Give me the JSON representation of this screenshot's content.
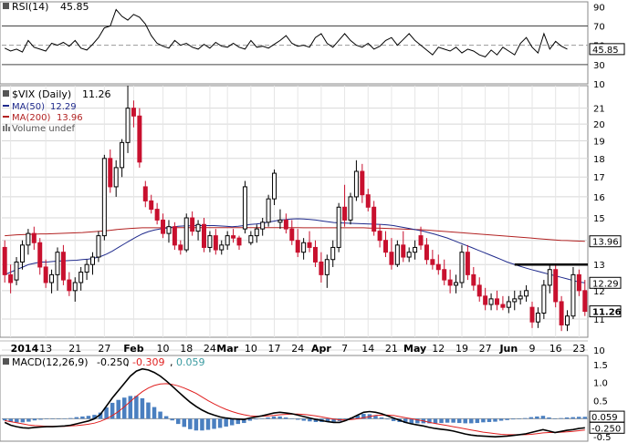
{
  "colors": {
    "up": "#000000",
    "down": "#c8102e",
    "ma50": "#1f2a8c",
    "ma200": "#b22222",
    "macd_line": "#000000",
    "signal_line": "#e02020",
    "hist": "#4a7fc0",
    "macd_hist_label": "#3a9aa0",
    "rsi_line": "#000000",
    "grid": "#d8d8d8",
    "trendline": "#000000"
  },
  "chart_data": [
    {
      "type": "line",
      "panel": "rsi",
      "legend": {
        "label": "RSI(14)",
        "value": "45.85"
      },
      "y_ticks": [
        "90",
        "70",
        "50",
        "30",
        "10"
      ],
      "ylim": [
        10,
        95
      ],
      "reference_lines": [
        70,
        50,
        30
      ],
      "last_value_tag": "45.85",
      "values": [
        47,
        44,
        46,
        43,
        55,
        48,
        46,
        44,
        52,
        50,
        53,
        49,
        55,
        47,
        45,
        51,
        58,
        68,
        70,
        87,
        80,
        76,
        82,
        79,
        72,
        60,
        52,
        49,
        47,
        55,
        50,
        52,
        48,
        46,
        51,
        47,
        53,
        49,
        48,
        52,
        48,
        46,
        55,
        48,
        49,
        47,
        51,
        55,
        60,
        52,
        49,
        50,
        48,
        58,
        62,
        52,
        48,
        55,
        62,
        55,
        50,
        48,
        52,
        46,
        49,
        55,
        58,
        50,
        56,
        62,
        55,
        50,
        45,
        40,
        48,
        46,
        44,
        48,
        42,
        46,
        44,
        40,
        38,
        45,
        40,
        48,
        44,
        40,
        52,
        58,
        48,
        42,
        62,
        46,
        54,
        49,
        46
      ]
    },
    {
      "type": "candlestick",
      "panel": "price",
      "legend": {
        "symbol": "$VIX (Daily)",
        "last": "11.26",
        "ma50_label": "MA(50)",
        "ma50_value": "12.29",
        "ma200_label": "MA(200)",
        "ma200_value": "13.96",
        "volume_label": "Volume undef"
      },
      "y_scale": "log",
      "ylim": [
        10.4,
        22.5
      ],
      "y_ticks": [
        "21",
        "20",
        "19",
        "18",
        "17",
        "16",
        "15",
        "14",
        "13",
        "12",
        "11",
        "10"
      ],
      "x_labels": [
        "2014",
        "13",
        "21",
        "27",
        "Feb",
        "10",
        "18",
        "24",
        "Mar",
        "10",
        "17",
        "24",
        "Apr",
        "7",
        "14",
        "21",
        "May",
        "12",
        "19",
        "27",
        "Jun",
        "9",
        "16",
        "23"
      ],
      "right_tags": [
        {
          "label": "13.96",
          "value": 13.96
        },
        {
          "label": "12.29",
          "value": 12.29
        },
        {
          "label": "11.26",
          "value": 11.26
        }
      ],
      "resistance_line": {
        "value": 13.0,
        "from_date": "Jun 9",
        "to_date": "Jun 26"
      },
      "ohlc": [
        [
          13.7,
          14.0,
          12.3,
          12.6
        ],
        [
          12.6,
          13.0,
          11.9,
          12.3
        ],
        [
          12.4,
          13.3,
          12.2,
          13.1
        ],
        [
          13.1,
          14.0,
          12.8,
          13.8
        ],
        [
          13.8,
          14.5,
          13.4,
          14.3
        ],
        [
          14.3,
          14.6,
          13.6,
          13.9
        ],
        [
          13.9,
          14.1,
          12.6,
          12.9
        ],
        [
          12.9,
          13.2,
          12.1,
          12.3
        ],
        [
          12.3,
          12.8,
          11.9,
          12.6
        ],
        [
          12.6,
          13.7,
          12.0,
          13.5
        ],
        [
          13.5,
          13.8,
          12.2,
          12.4
        ],
        [
          12.4,
          12.7,
          11.8,
          12.0
        ],
        [
          12.0,
          12.5,
          11.6,
          12.3
        ],
        [
          12.3,
          12.9,
          12.0,
          12.7
        ],
        [
          12.7,
          13.2,
          12.4,
          13.0
        ],
        [
          13.0,
          13.5,
          12.6,
          13.3
        ],
        [
          13.3,
          14.4,
          13.1,
          14.2
        ],
        [
          14.2,
          18.2,
          14.0,
          18.0
        ],
        [
          18.0,
          18.5,
          16.2,
          16.5
        ],
        [
          16.5,
          17.9,
          16.0,
          17.5
        ],
        [
          17.5,
          19.1,
          17.0,
          18.9
        ],
        [
          18.9,
          22.5,
          18.3,
          21.0
        ],
        [
          21.0,
          21.5,
          19.8,
          20.5
        ],
        [
          20.5,
          21.0,
          17.5,
          17.8
        ],
        [
          16.5,
          16.8,
          15.5,
          15.8
        ],
        [
          15.8,
          16.1,
          15.2,
          15.4
        ],
        [
          15.4,
          15.7,
          14.7,
          14.9
        ],
        [
          14.9,
          15.2,
          14.1,
          14.3
        ],
        [
          14.3,
          14.9,
          13.9,
          14.6
        ],
        [
          14.6,
          14.8,
          13.6,
          13.8
        ],
        [
          13.8,
          14.0,
          13.4,
          13.6
        ],
        [
          13.6,
          15.2,
          13.5,
          15.0
        ],
        [
          15.0,
          15.3,
          14.2,
          14.4
        ],
        [
          14.4,
          14.9,
          14.0,
          14.7
        ],
        [
          14.7,
          15.0,
          13.5,
          13.7
        ],
        [
          13.7,
          14.4,
          13.5,
          14.2
        ],
        [
          14.2,
          14.5,
          13.4,
          13.6
        ],
        [
          13.6,
          14.0,
          13.4,
          13.8
        ],
        [
          13.8,
          14.4,
          13.6,
          14.2
        ],
        [
          14.2,
          14.5,
          13.9,
          14.1
        ],
        [
          14.1,
          14.2,
          13.6,
          13.8
        ],
        [
          14.5,
          16.8,
          14.3,
          16.5
        ],
        [
          13.9,
          14.4,
          13.8,
          14.2
        ],
        [
          14.2,
          14.7,
          13.9,
          14.5
        ],
        [
          14.5,
          15.0,
          14.2,
          14.8
        ],
        [
          14.8,
          16.1,
          14.6,
          15.9
        ],
        [
          15.9,
          17.4,
          15.6,
          17.2
        ],
        [
          14.8,
          15.4,
          14.5,
          14.9
        ],
        [
          14.9,
          15.2,
          14.3,
          14.5
        ],
        [
          14.5,
          14.9,
          13.8,
          14.0
        ],
        [
          14.0,
          14.5,
          13.3,
          13.5
        ],
        [
          13.5,
          14.1,
          13.2,
          13.9
        ],
        [
          13.9,
          14.4,
          13.5,
          13.7
        ],
        [
          13.7,
          14.0,
          12.9,
          13.1
        ],
        [
          13.1,
          13.5,
          12.3,
          12.6
        ],
        [
          12.6,
          13.4,
          12.1,
          13.2
        ],
        [
          13.2,
          14.0,
          12.9,
          13.7
        ],
        [
          13.7,
          15.7,
          13.5,
          15.5
        ],
        [
          15.5,
          16.6,
          14.6,
          14.9
        ],
        [
          14.9,
          16.2,
          14.7,
          16.0
        ],
        [
          16.0,
          17.9,
          15.8,
          17.3
        ],
        [
          17.3,
          17.7,
          15.7,
          16.1
        ],
        [
          16.1,
          16.4,
          15.3,
          15.5
        ],
        [
          15.5,
          15.8,
          14.2,
          14.4
        ],
        [
          14.4,
          14.7,
          13.7,
          14.0
        ],
        [
          14.0,
          14.4,
          13.3,
          13.5
        ],
        [
          13.5,
          14.1,
          12.8,
          13.0
        ],
        [
          13.0,
          14.0,
          12.9,
          13.8
        ],
        [
          13.8,
          14.4,
          13.1,
          13.3
        ],
        [
          13.3,
          13.7,
          13.1,
          13.5
        ],
        [
          13.5,
          14.0,
          13.2,
          13.7
        ],
        [
          14.2,
          14.6,
          13.6,
          13.8
        ],
        [
          13.8,
          14.1,
          13.0,
          13.2
        ],
        [
          13.2,
          13.6,
          12.8,
          13.0
        ],
        [
          13.0,
          13.4,
          12.6,
          12.8
        ],
        [
          12.8,
          13.2,
          12.2,
          12.4
        ],
        [
          12.4,
          12.8,
          11.9,
          12.2
        ],
        [
          12.2,
          12.6,
          11.9,
          12.3
        ],
        [
          12.3,
          13.8,
          12.1,
          13.5
        ],
        [
          13.5,
          13.8,
          12.4,
          12.6
        ],
        [
          12.6,
          12.9,
          12.0,
          12.2
        ],
        [
          12.2,
          12.5,
          11.6,
          11.8
        ],
        [
          11.8,
          12.1,
          11.3,
          11.5
        ],
        [
          11.5,
          11.9,
          11.3,
          11.7
        ],
        [
          11.7,
          12.0,
          11.3,
          11.5
        ],
        [
          11.5,
          11.8,
          11.3,
          11.4
        ],
        [
          11.4,
          11.8,
          11.2,
          11.6
        ],
        [
          11.6,
          12.0,
          11.3,
          11.7
        ],
        [
          11.7,
          12.0,
          11.5,
          11.8
        ],
        [
          11.8,
          12.2,
          11.6,
          12.0
        ],
        [
          11.4,
          11.6,
          10.7,
          10.9
        ],
        [
          10.9,
          11.4,
          10.7,
          11.2
        ],
        [
          11.2,
          12.4,
          11.0,
          12.2
        ],
        [
          12.2,
          13.0,
          11.9,
          12.8
        ],
        [
          12.8,
          13.0,
          11.4,
          11.6
        ],
        [
          11.6,
          11.8,
          10.6,
          10.8
        ],
        [
          10.8,
          11.3,
          10.6,
          11.1
        ],
        [
          11.1,
          12.9,
          11.0,
          12.6
        ],
        [
          12.6,
          12.8,
          11.8,
          12.0
        ],
        [
          12.0,
          12.4,
          11.1,
          11.26
        ]
      ],
      "ma50": [
        12.6,
        12.7,
        12.8,
        12.9,
        13.0,
        13.05,
        13.1,
        13.1,
        13.12,
        13.14,
        13.15,
        13.16,
        13.17,
        13.2,
        13.22,
        13.26,
        13.32,
        13.42,
        13.55,
        13.7,
        13.85,
        14.0,
        14.15,
        14.28,
        14.38,
        14.45,
        14.5,
        14.54,
        14.58,
        14.62,
        14.63,
        14.64,
        14.65,
        14.65,
        14.65,
        14.65,
        14.63,
        14.62,
        14.6,
        14.62,
        14.65,
        14.7,
        14.72,
        14.75,
        14.8,
        14.85,
        14.9,
        14.92,
        14.95,
        14.96,
        14.95,
        14.93,
        14.9,
        14.86,
        14.82,
        14.79,
        14.77,
        14.76,
        14.75,
        14.74,
        14.73,
        14.72,
        14.71,
        14.7,
        14.68,
        14.65,
        14.6,
        14.55,
        14.5,
        14.45,
        14.4,
        14.33,
        14.26,
        14.18,
        14.1,
        14.0,
        13.9,
        13.8,
        13.7,
        13.6,
        13.5,
        13.4,
        13.3,
        13.2,
        13.1,
        13.02,
        12.94,
        12.87,
        12.8,
        12.74,
        12.68,
        12.62,
        12.56,
        12.5,
        12.44,
        12.38,
        12.32,
        12.29
      ],
      "ma200": [
        14.2,
        14.22,
        14.24,
        14.25,
        14.26,
        14.27,
        14.28,
        14.28,
        14.29,
        14.3,
        14.31,
        14.32,
        14.33,
        14.34,
        14.36,
        14.38,
        14.4,
        14.42,
        14.45,
        14.48,
        14.5,
        14.52,
        14.54,
        14.55,
        14.55,
        14.55,
        14.55,
        14.56,
        14.56,
        14.56,
        14.56,
        14.56,
        14.56,
        14.56,
        14.56,
        14.56,
        14.56,
        14.56,
        14.56,
        14.56,
        14.56,
        14.56,
        14.56,
        14.56,
        14.56,
        14.56,
        14.56,
        14.56,
        14.56,
        14.56,
        14.55,
        14.55,
        14.55,
        14.55,
        14.55,
        14.55,
        14.55,
        14.55,
        14.55,
        14.55,
        14.55,
        14.54,
        14.54,
        14.53,
        14.52,
        14.51,
        14.5,
        14.49,
        14.48,
        14.47,
        14.46,
        14.44,
        14.42,
        14.4,
        14.38,
        14.36,
        14.34,
        14.32,
        14.3,
        14.28,
        14.26,
        14.24,
        14.22,
        14.2,
        14.18,
        14.16,
        14.14,
        14.12,
        14.1,
        14.08,
        14.06,
        14.04,
        14.02,
        14.0,
        13.99,
        13.98,
        13.97,
        13.96
      ]
    },
    {
      "type": "bar",
      "panel": "macd",
      "legend": {
        "label": "MACD(12,26,9)",
        "macd": "-0.250",
        "signal": "-0.309",
        "hist": "0.059"
      },
      "y_ticks": [
        "1.5",
        "1.0",
        "0.5",
        "0.0",
        "-0.5"
      ],
      "ylim": [
        -0.62,
        1.75
      ],
      "right_tags": [
        {
          "label": "0.059",
          "value": 0.059
        },
        {
          "label": "-0.250",
          "value": -0.25
        }
      ],
      "macd": [
        -0.1,
        -0.18,
        -0.22,
        -0.25,
        -0.26,
        -0.24,
        -0.23,
        -0.22,
        -0.22,
        -0.21,
        -0.2,
        -0.18,
        -0.14,
        -0.1,
        -0.06,
        0.0,
        0.12,
        0.35,
        0.58,
        0.78,
        0.98,
        1.18,
        1.32,
        1.38,
        1.35,
        1.28,
        1.18,
        1.05,
        0.9,
        0.75,
        0.6,
        0.46,
        0.34,
        0.24,
        0.16,
        0.1,
        0.05,
        0.02,
        0.0,
        -0.01,
        -0.02,
        0.02,
        0.05,
        0.08,
        0.12,
        0.16,
        0.18,
        0.16,
        0.14,
        0.1,
        0.06,
        0.02,
        -0.02,
        -0.05,
        -0.08,
        -0.1,
        -0.1,
        -0.05,
        0.02,
        0.1,
        0.18,
        0.2,
        0.18,
        0.14,
        0.08,
        0.02,
        -0.04,
        -0.1,
        -0.14,
        -0.17,
        -0.2,
        -0.24,
        -0.27,
        -0.29,
        -0.31,
        -0.34,
        -0.38,
        -0.42,
        -0.45,
        -0.47,
        -0.48,
        -0.49,
        -0.5,
        -0.49,
        -0.48,
        -0.46,
        -0.44,
        -0.42,
        -0.38,
        -0.34,
        -0.3,
        -0.34,
        -0.38,
        -0.35,
        -0.32,
        -0.3,
        -0.27,
        -0.25
      ],
      "signal": [
        -0.05,
        -0.08,
        -0.11,
        -0.14,
        -0.17,
        -0.19,
        -0.2,
        -0.21,
        -0.21,
        -0.21,
        -0.21,
        -0.2,
        -0.19,
        -0.17,
        -0.15,
        -0.12,
        -0.07,
        0.0,
        0.09,
        0.2,
        0.33,
        0.48,
        0.62,
        0.75,
        0.85,
        0.92,
        0.96,
        0.97,
        0.95,
        0.91,
        0.85,
        0.78,
        0.7,
        0.6,
        0.5,
        0.41,
        0.33,
        0.26,
        0.2,
        0.15,
        0.11,
        0.08,
        0.07,
        0.07,
        0.08,
        0.09,
        0.11,
        0.12,
        0.13,
        0.13,
        0.12,
        0.1,
        0.08,
        0.05,
        0.02,
        -0.01,
        -0.03,
        -0.03,
        -0.02,
        0.0,
        0.03,
        0.06,
        0.09,
        0.1,
        0.1,
        0.09,
        0.06,
        0.03,
        0.0,
        -0.03,
        -0.06,
        -0.1,
        -0.13,
        -0.16,
        -0.19,
        -0.22,
        -0.25,
        -0.28,
        -0.31,
        -0.34,
        -0.37,
        -0.39,
        -0.41,
        -0.43,
        -0.44,
        -0.44,
        -0.44,
        -0.44,
        -0.43,
        -0.41,
        -0.39,
        -0.38,
        -0.38,
        -0.37,
        -0.36,
        -0.35,
        -0.33,
        -0.31
      ]
    }
  ]
}
